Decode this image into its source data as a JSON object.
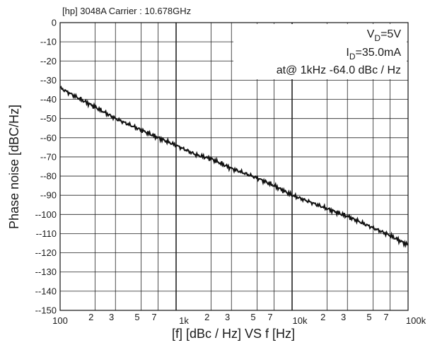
{
  "chart_data": {
    "type": "line",
    "title": "[hp] 3048A Carrier : 10.678GHz",
    "xlabel": "[f] [dBc / Hz]  VS  f [Hz]",
    "ylabel": "Phase noise [dBC/Hz]",
    "x_scale": "log",
    "xlim": [
      100,
      100000
    ],
    "ylim": [
      -150,
      0
    ],
    "grid": true,
    "y_ticks": [
      0,
      -10,
      -20,
      -30,
      -40,
      -50,
      -60,
      -70,
      -80,
      -90,
      -100,
      -110,
      -120,
      -130,
      -140,
      -150
    ],
    "y_tick_labels": [
      "0",
      "--10",
      "--20",
      "--30",
      "--40",
      "--50",
      "--60",
      "--70",
      "--80",
      "--90",
      "--100",
      "--110",
      "--120",
      "--130",
      "--140",
      "--150"
    ],
    "x_ticks": [
      {
        "value": 100,
        "label": "100"
      },
      {
        "value": 200,
        "label": "2"
      },
      {
        "value": 300,
        "label": "3"
      },
      {
        "value": 500,
        "label": "5"
      },
      {
        "value": 700,
        "label": "7"
      },
      {
        "value": 1000,
        "label": "1k"
      },
      {
        "value": 2000,
        "label": "2"
      },
      {
        "value": 3000,
        "label": "3"
      },
      {
        "value": 5000,
        "label": "5"
      },
      {
        "value": 7000,
        "label": "7"
      },
      {
        "value": 10000,
        "label": "10k"
      },
      {
        "value": 20000,
        "label": "2"
      },
      {
        "value": 30000,
        "label": "3"
      },
      {
        "value": 50000,
        "label": "5"
      },
      {
        "value": 70000,
        "label": "7"
      },
      {
        "value": 100000,
        "label": "100k"
      }
    ],
    "annotations": {
      "vd_prefix": "V",
      "vd_sub": "D",
      "vd_suffix": "=5V",
      "id_prefix": "I",
      "id_sub": "D",
      "id_suffix": "=35.0mA",
      "at_line": "at@ 1kHz -64.0 dBc / Hz"
    },
    "series": [
      {
        "x": [
          100,
          150,
          200,
          300,
          500,
          700,
          1000,
          1500,
          2000,
          3000,
          5000,
          7000,
          10000,
          15000,
          20000,
          30000,
          50000,
          70000,
          100000
        ],
        "y": [
          -34,
          -40,
          -44,
          -50,
          -56,
          -60,
          -64,
          -69,
          -71,
          -76,
          -81,
          -85,
          -90,
          -94,
          -97,
          -101,
          -107,
          -111,
          -116
        ]
      }
    ],
    "colors": {
      "line": "#111111",
      "grid": "#222222",
      "frame": "#111111"
    }
  }
}
